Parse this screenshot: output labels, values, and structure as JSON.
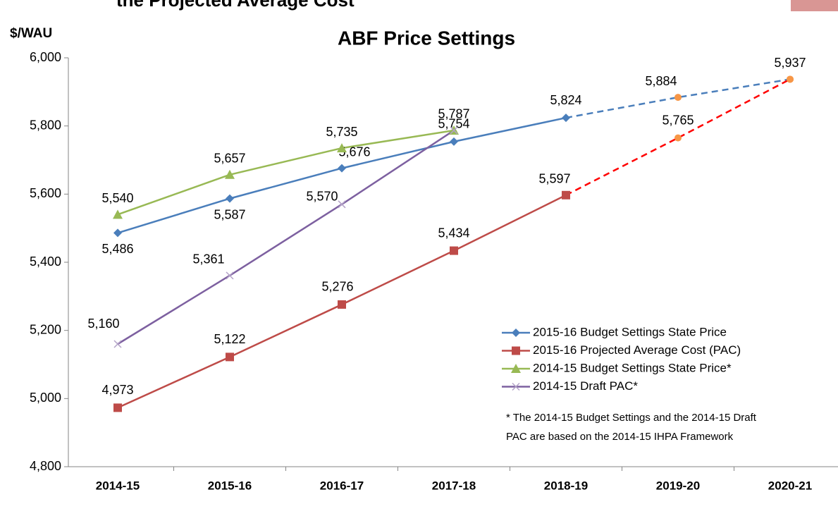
{
  "page_title": "the Projected Average Cost",
  "chart_data": {
    "type": "line",
    "title": "ABF Price Settings",
    "y_label": "$/WAU",
    "categories": [
      "2014-15",
      "2015-16",
      "2016-17",
      "2017-18",
      "2018-19",
      "2019-20",
      "2020-21"
    ],
    "ylim": [
      4800,
      6000
    ],
    "yticks": [
      {
        "value": 4800,
        "label": "4,800"
      },
      {
        "value": 5000,
        "label": "5,000"
      },
      {
        "value": 5200,
        "label": "5,200"
      },
      {
        "value": 5400,
        "label": "5,400"
      },
      {
        "value": 5600,
        "label": "5,600"
      },
      {
        "value": 5800,
        "label": "5,800"
      },
      {
        "value": 6000,
        "label": "6,000"
      }
    ],
    "grid": false,
    "legend": "lower right",
    "projected_marker_color": "#f79646",
    "series": [
      {
        "name": "2015-16 Budget Settings State Price",
        "color": "#4a7ebb",
        "marker": "diamond",
        "dash_start_index": 4,
        "values": [
          5486,
          5587,
          5676,
          5754,
          5824,
          5884,
          5937
        ],
        "value_labels": [
          "5,486",
          "5,587",
          "5,676",
          "5,754",
          "5,824",
          "5,884",
          "5,937"
        ]
      },
      {
        "name": "2015-16 Projected Average Cost (PAC)",
        "color": "#be4b48",
        "marker": "square",
        "dash_start_index": 4,
        "dash_color": "#ff0000",
        "values": [
          4973,
          5122,
          5276,
          5434,
          5597,
          5765,
          5937
        ],
        "value_labels": [
          "4,973",
          "5,122",
          "5,276",
          "5,434",
          "5,597",
          "5,765",
          null
        ]
      },
      {
        "name": "2014-15 Budget Settings State Price*",
        "color": "#98b954",
        "marker": "triangle",
        "values": [
          5540,
          5657,
          5735,
          5787,
          null,
          null,
          null
        ],
        "value_labels": [
          "5,540",
          "5,657",
          "5,735",
          "5,787",
          null,
          null,
          null
        ]
      },
      {
        "name": "2014-15 Draft PAC*",
        "color": "#7d60a0",
        "marker": "x",
        "values": [
          5160,
          5361,
          5570,
          5787,
          null,
          null,
          null
        ],
        "value_labels": [
          "5,160",
          "5,361",
          "5,570",
          null,
          null,
          null,
          null
        ]
      }
    ],
    "note": [
      "* The 2014-15 Budget Settings and the 2014-15 Draft",
      "PAC are based on the 2014-15 IHPA Framework"
    ]
  }
}
